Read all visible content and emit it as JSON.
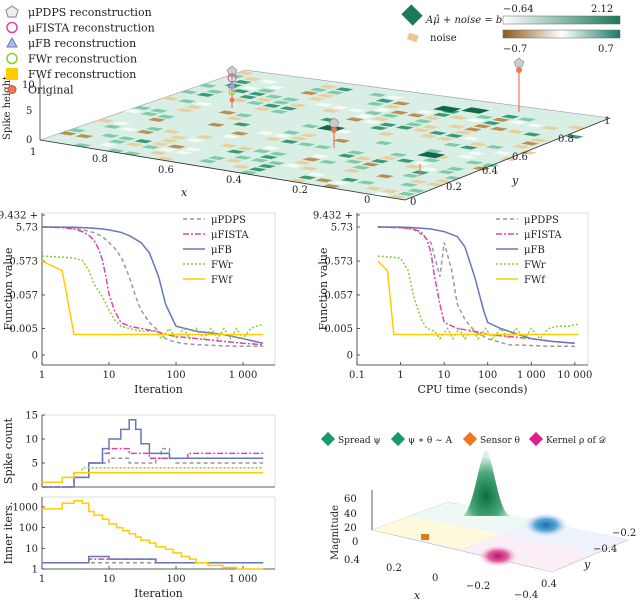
{
  "legend_top": [
    {
      "label": "μPDPS reconstruction",
      "color": "#999999",
      "marker": "pentagon"
    },
    {
      "label": "μFISTA reconstruction",
      "color": "#dd44aa",
      "marker": "circle"
    },
    {
      "label": "μFB reconstruction",
      "color": "#6677bb",
      "marker": "triangle"
    },
    {
      "label": "FWr reconstruction",
      "color": "#88cc33",
      "marker": "circle"
    },
    {
      "label": "FWf reconstruction",
      "color": "#ffcc00",
      "marker": "square"
    },
    {
      "label": "Original",
      "color": "#ee7755",
      "marker": "dot"
    }
  ],
  "colorbars": {
    "signal_label": "Aμ̂ + noise = b",
    "signal_min": "−0.64",
    "signal_max": "2.12",
    "noise_label": "noise",
    "noise_min": "−0.7",
    "noise_max": "0.7",
    "green": "#1a8c6a",
    "brown": "#8b5a1a"
  },
  "kernel_legend": [
    {
      "label": "Spread ψ",
      "color": "#1a9a6a"
    },
    {
      "label": "ψ ∗ θ ∼ A",
      "color": "#1a9a6a"
    },
    {
      "label": "Sensor θ",
      "color": "#ee7722"
    },
    {
      "label": "Kernel ρ of 𝒟",
      "color": "#dd2288"
    }
  ],
  "axes3d": {
    "top": {
      "zlabel": "Spike height",
      "xlabel": "x",
      "ylabel": "y",
      "zticks": [
        "0",
        "5",
        "10"
      ],
      "xticks": [
        "1",
        "0.8",
        "0.6",
        "0.4",
        "0.2",
        "0"
      ],
      "yticks": [
        "0",
        "0.2",
        "0.4",
        "0.6",
        "0.8",
        "1"
      ]
    },
    "bottom": {
      "zlabel": "Magnitude",
      "xlabel": "x",
      "ylabel": "y",
      "zticks": [
        "0",
        "20",
        "40",
        "60"
      ],
      "xticks": [
        "−0.4",
        "−0.2",
        "0",
        "0.2",
        "0.4"
      ],
      "yticks": [
        "−0.4",
        "−0.2",
        "0",
        "0.2",
        "0.4"
      ]
    }
  },
  "chart_data": [
    {
      "type": "line",
      "id": "function-vs-iteration",
      "xlabel": "Iteration",
      "ylabel": "Function value",
      "xscale": "log",
      "xlim": [
        1,
        3000
      ],
      "xticks": [
        "1",
        "10",
        "100",
        "1 000"
      ],
      "yticks": [
        "0",
        "0.005",
        "0.057",
        "0.573",
        "5.73",
        "9.432 +"
      ],
      "legend": "top-right",
      "series": [
        {
          "name": "μPDPS",
          "color": "#999999",
          "dash": "4,3",
          "x": [
            1,
            2,
            3,
            4,
            6,
            8,
            10,
            13,
            16,
            20,
            25,
            30,
            40,
            55,
            70,
            90,
            120,
            200,
            400,
            800,
            2000
          ],
          "y": [
            5.73,
            5.6,
            5.3,
            4.8,
            3.9,
            3.0,
            2.0,
            1.2,
            0.6,
            0.2,
            0.05,
            0.02,
            0.008,
            0.004,
            0.002,
            0.0015,
            0.0012,
            0.001,
            0.0009,
            0.0008,
            0.0008
          ]
        },
        {
          "name": "μFISTA",
          "color": "#dd44aa",
          "dash": "6,2,2,2",
          "x": [
            1,
            2,
            3,
            4,
            5,
            6,
            7,
            8,
            9,
            10,
            12,
            15,
            20,
            30,
            50,
            70,
            100,
            300,
            1000,
            2000
          ],
          "y": [
            5.73,
            5.5,
            5.0,
            4.2,
            3.3,
            2.3,
            1.3,
            0.6,
            0.2,
            0.06,
            0.02,
            0.008,
            0.006,
            0.005,
            0.004,
            0.003,
            0.0025,
            0.0018,
            0.0012,
            0.001
          ]
        },
        {
          "name": "μFB",
          "color": "#6677bb",
          "dash": "",
          "x": [
            1,
            2,
            3,
            5,
            8,
            10,
            15,
            20,
            30,
            40,
            55,
            70,
            100,
            200,
            500,
            1000,
            2000
          ],
          "y": [
            5.73,
            5.7,
            5.6,
            5.4,
            5.0,
            4.7,
            4.0,
            3.2,
            2.0,
            1.0,
            0.2,
            0.03,
            0.006,
            0.004,
            0.003,
            0.002,
            0.0012
          ]
        },
        {
          "name": "FWr",
          "color": "#88cc33",
          "dash": "2,2",
          "x": [
            1,
            2,
            3,
            4,
            5,
            6,
            8,
            10,
            12,
            15,
            20,
            30,
            50,
            60,
            80,
            100,
            130,
            160,
            200,
            260,
            330,
            420,
            520,
            650,
            800,
            1000,
            1300,
            1600,
            2000
          ],
          "y": [
            0.8,
            0.75,
            0.7,
            0.6,
            0.3,
            0.12,
            0.05,
            0.02,
            0.01,
            0.006,
            0.005,
            0.004,
            0.004,
            0.002,
            0.005,
            0.002,
            0.005,
            0.002,
            0.005,
            0.002,
            0.005,
            0.002,
            0.005,
            0.002,
            0.005,
            0.002,
            0.005,
            0.006,
            0.007
          ]
        },
        {
          "name": "FWf",
          "color": "#ffcc00",
          "dash": "",
          "x": [
            1,
            2,
            3,
            100,
            1000,
            2000
          ],
          "y": [
            0.57,
            0.3,
            0.003,
            0.003,
            0.003,
            0.003
          ]
        }
      ]
    },
    {
      "type": "line",
      "id": "function-vs-cpu",
      "xlabel": "CPU time (seconds)",
      "ylabel": "Function value",
      "xscale": "log",
      "xlim": [
        0.1,
        20000
      ],
      "xticks": [
        "0.1",
        "1",
        "10",
        "100",
        "1 000",
        "10 000"
      ],
      "yticks": [
        "0",
        "0.005",
        "0.057",
        "0.573",
        "5.73",
        "9.432 +"
      ],
      "legend": "top-right",
      "series": [
        {
          "name": "μPDPS",
          "color": "#999999",
          "dash": "4,3",
          "x": [
            0.3,
            1,
            2,
            3,
            5,
            8,
            10,
            15,
            20,
            30,
            50,
            100,
            300,
            1000,
            3000,
            10000
          ],
          "y": [
            5.73,
            5.5,
            4.8,
            3.5,
            2.0,
            0.2,
            2.0,
            0.3,
            0.03,
            0.01,
            0.004,
            0.002,
            0.001,
            0.0009,
            0.0008,
            0.0008
          ]
        },
        {
          "name": "μFISTA",
          "color": "#dd44aa",
          "dash": "6,2,2,2",
          "x": [
            0.3,
            1,
            2,
            3,
            4,
            5,
            6,
            8,
            10,
            20,
            50,
            100,
            300,
            1000,
            3000,
            10000
          ],
          "y": [
            5.73,
            5.5,
            5.0,
            4.0,
            2.5,
            1.0,
            0.2,
            0.03,
            0.008,
            0.005,
            0.004,
            0.003,
            0.0025,
            0.002,
            0.0015,
            0.0012
          ]
        },
        {
          "name": "μFB",
          "color": "#6677bb",
          "dash": "",
          "x": [
            0.3,
            1,
            2,
            5,
            10,
            20,
            30,
            50,
            80,
            100,
            200,
            500,
            1000,
            3000,
            10000
          ],
          "y": [
            5.73,
            5.7,
            5.5,
            5.0,
            4.2,
            3.0,
            1.5,
            0.2,
            0.02,
            0.008,
            0.005,
            0.003,
            0.002,
            0.0015,
            0.0012
          ]
        },
        {
          "name": "FWr",
          "color": "#88cc33",
          "dash": "2,2",
          "x": [
            0.3,
            0.6,
            1,
            1.5,
            2,
            3,
            4,
            6,
            8,
            12,
            16,
            22,
            30,
            45,
            60,
            90,
            130,
            200,
            300,
            450,
            700,
            1000,
            1600,
            2500,
            4000,
            7000,
            12000
          ],
          "y": [
            0.8,
            0.75,
            0.7,
            0.3,
            0.05,
            0.01,
            0.005,
            0.004,
            0.002,
            0.005,
            0.002,
            0.005,
            0.002,
            0.005,
            0.002,
            0.005,
            0.002,
            0.005,
            0.002,
            0.005,
            0.002,
            0.005,
            0.002,
            0.005,
            0.006,
            0.006,
            0.007
          ]
        },
        {
          "name": "FWf",
          "color": "#ffcc00",
          "dash": "",
          "x": [
            0.3,
            0.5,
            0.7,
            1,
            100,
            12000
          ],
          "y": [
            0.57,
            0.3,
            0.003,
            0.003,
            0.003,
            0.003
          ]
        }
      ]
    },
    {
      "type": "line",
      "id": "spike-count",
      "xlabel": "",
      "ylabel": "Spike count",
      "xscale": "log",
      "xlim": [
        1,
        3000
      ],
      "ylim": [
        0,
        15
      ],
      "yticks": [
        "0",
        "5",
        "10",
        "15"
      ],
      "series": [
        {
          "name": "μPDPS",
          "color": "#999999",
          "dash": "4,3",
          "x": [
            1,
            3,
            5,
            10,
            20,
            30,
            50,
            60,
            80,
            100,
            300,
            2000
          ],
          "y": [
            0,
            2,
            5,
            6,
            5,
            5,
            6,
            8,
            6,
            5,
            5,
            5
          ]
        },
        {
          "name": "μFISTA",
          "color": "#dd44aa",
          "dash": "6,2,2,2",
          "x": [
            1,
            3,
            5,
            8,
            10,
            20,
            40,
            80,
            150,
            300,
            2000
          ],
          "y": [
            0,
            2,
            5,
            7,
            8,
            7,
            6,
            6,
            7,
            7,
            7
          ]
        },
        {
          "name": "μFB",
          "color": "#6677bb",
          "dash": "",
          "x": [
            1,
            3,
            5,
            8,
            10,
            15,
            20,
            25,
            30,
            40,
            60,
            80,
            100,
            200,
            400,
            2000
          ],
          "y": [
            0,
            2,
            5,
            8,
            10,
            12,
            14,
            12,
            9,
            7,
            7,
            6,
            6,
            6,
            6,
            6
          ]
        },
        {
          "name": "FWr",
          "color": "#88cc33",
          "dash": "2,2",
          "x": [
            1,
            2,
            3,
            4,
            5,
            2000
          ],
          "y": [
            1,
            2,
            3,
            4,
            4,
            4
          ]
        },
        {
          "name": "FWf",
          "color": "#ffcc00",
          "dash": "",
          "x": [
            1,
            2,
            3,
            2000
          ],
          "y": [
            1,
            2,
            3,
            3
          ]
        }
      ]
    },
    {
      "type": "line",
      "id": "inner-iters",
      "xlabel": "Iteration",
      "ylabel": "Inner iters.",
      "xscale": "log",
      "yscale": "log",
      "xlim": [
        1,
        3000
      ],
      "ylim": [
        1,
        3000
      ],
      "xticks": [
        "1",
        "10",
        "100",
        "1 000"
      ],
      "yticks": [
        "1",
        "10",
        "100",
        "1000"
      ],
      "series": [
        {
          "name": "μPDPS",
          "color": "#999999",
          "dash": "4,3",
          "x": [
            1,
            10,
            100,
            2000
          ],
          "y": [
            2,
            2,
            2,
            2
          ]
        },
        {
          "name": "μFISTA",
          "color": "#dd44aa",
          "dash": "6,2,2,2",
          "x": [
            1,
            5,
            10,
            50,
            100,
            2000
          ],
          "y": [
            2,
            3,
            3,
            2,
            2,
            2
          ]
        },
        {
          "name": "μFB",
          "color": "#6677bb",
          "dash": "",
          "x": [
            1,
            5,
            10,
            30,
            50,
            100,
            2000
          ],
          "y": [
            2,
            4,
            3,
            3,
            2,
            2,
            2
          ]
        },
        {
          "name": "FWf",
          "color": "#ffcc00",
          "dash": "",
          "x": [
            1,
            2,
            3,
            4,
            5,
            6,
            8,
            10,
            13,
            16,
            20,
            25,
            30,
            40,
            50,
            70,
            90,
            120,
            160,
            200,
            300,
            500,
            800,
            2000
          ],
          "y": [
            800,
            1500,
            2000,
            1500,
            600,
            400,
            250,
            150,
            100,
            70,
            50,
            35,
            25,
            18,
            12,
            9,
            6,
            4,
            3,
            2,
            1.5,
            1.2,
            1,
            1
          ]
        }
      ]
    }
  ]
}
